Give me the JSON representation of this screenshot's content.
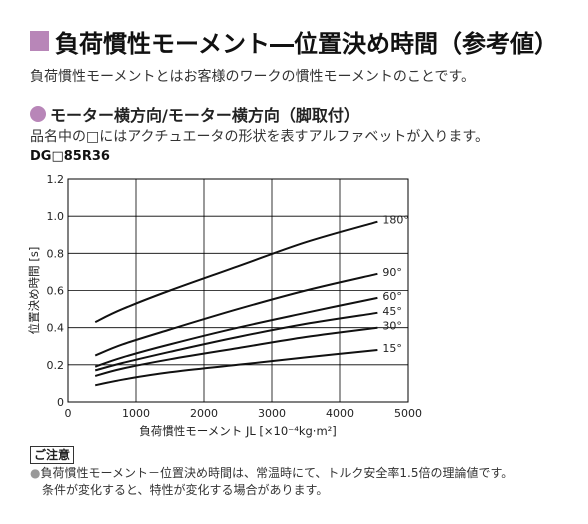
{
  "heading": {
    "title": "負荷慣性モーメント―位置決め時間（参考値）",
    "description": "負荷慣性モーメントとはお客様のワークの慣性モーメントのことです。"
  },
  "section": {
    "subtitle": "モーター横方向/モーター横方向（脚取付）",
    "note": "品名中の□にはアクチュエータの形状を表すアルファベットが入ります。",
    "model": "DG□85R36"
  },
  "caution": {
    "label": "ご注意",
    "line1": "負荷慣性モーメント－位置決め時間は、常温時にて、トルク安全率1.5倍の理論値です。",
    "line2": "条件が変化すると、特性が変化する場合があります。"
  },
  "colors": {
    "accent": "#b886b8",
    "line": "#111111",
    "grid": "#000000"
  },
  "chart_data": {
    "type": "line",
    "xlabel": "負荷慣性モーメント JL [×10⁻⁴kg·m²]",
    "ylabel": "位置決め時間 [s]",
    "xlim": [
      0,
      5000
    ],
    "ylim": [
      0,
      1.2
    ],
    "x_ticks": [
      "0",
      "1000",
      "2000",
      "3000",
      "4000",
      "5000"
    ],
    "y_ticks": [
      "0",
      "0.2",
      "0.4",
      "0.6",
      "0.8",
      "1.0",
      "1.2"
    ],
    "grid": true,
    "series": [
      {
        "name": "180°",
        "x": [
          400,
          800,
          1500,
          2500,
          3500,
          4550
        ],
        "y": [
          0.43,
          0.5,
          0.6,
          0.73,
          0.86,
          0.97
        ]
      },
      {
        "name": "90°",
        "x": [
          400,
          800,
          1500,
          2500,
          3500,
          4550
        ],
        "y": [
          0.25,
          0.31,
          0.39,
          0.5,
          0.6,
          0.69
        ]
      },
      {
        "name": "60°",
        "x": [
          400,
          800,
          1500,
          2500,
          3500,
          4550
        ],
        "y": [
          0.19,
          0.24,
          0.31,
          0.4,
          0.48,
          0.56
        ]
      },
      {
        "name": "45°",
        "x": [
          400,
          800,
          1500,
          2500,
          3500,
          4550
        ],
        "y": [
          0.17,
          0.21,
          0.27,
          0.35,
          0.42,
          0.48
        ]
      },
      {
        "name": "30°",
        "x": [
          400,
          800,
          1500,
          2500,
          3500,
          4550
        ],
        "y": [
          0.14,
          0.18,
          0.23,
          0.29,
          0.35,
          0.4
        ]
      },
      {
        "name": "15°",
        "x": [
          400,
          800,
          1500,
          2500,
          3500,
          4550
        ],
        "y": [
          0.09,
          0.12,
          0.16,
          0.2,
          0.24,
          0.28
        ]
      }
    ]
  }
}
